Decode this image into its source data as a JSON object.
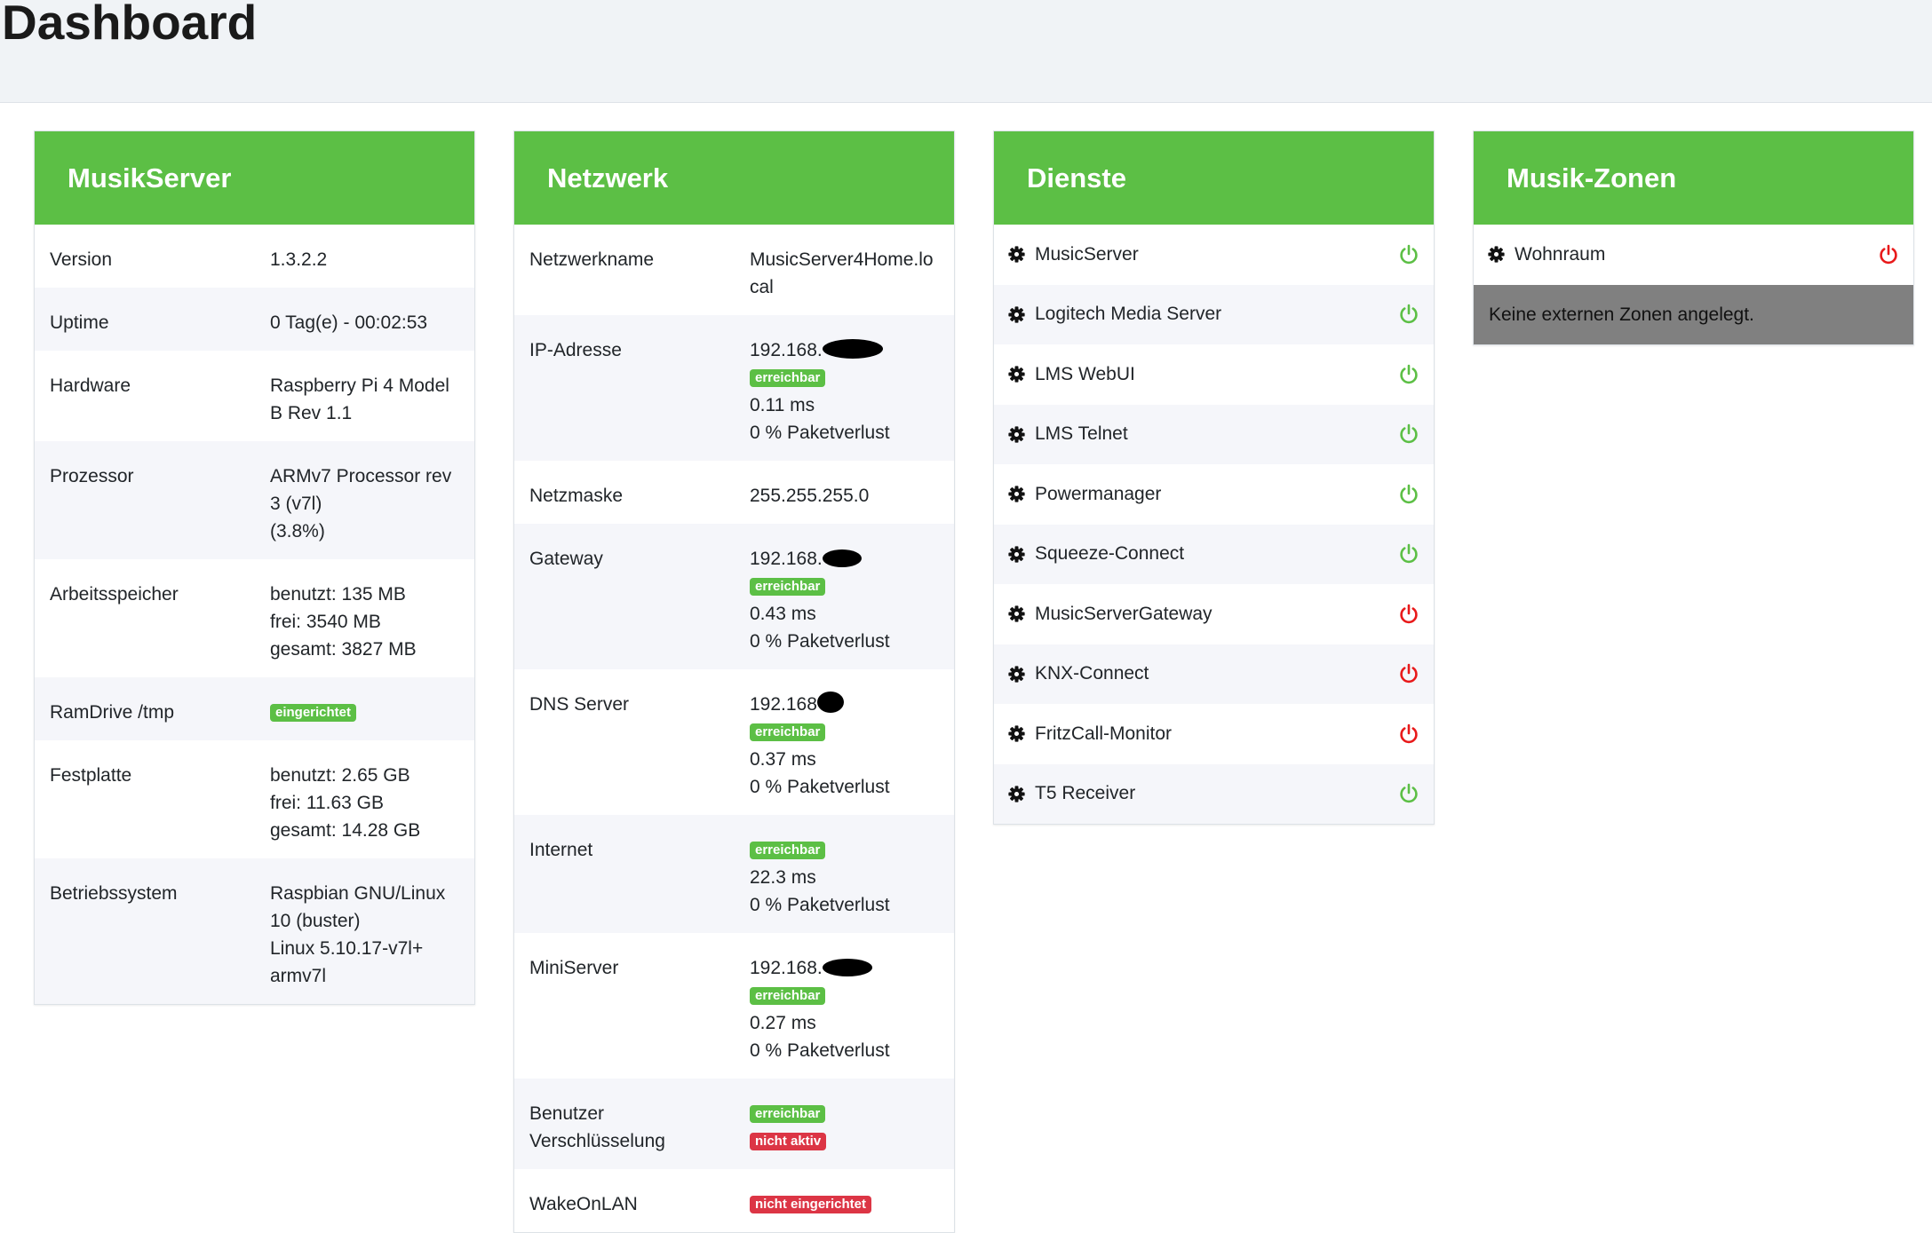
{
  "title": "Dashboard",
  "musikserver": {
    "title": "MusikServer",
    "rows": [
      {
        "label": "Version",
        "lines": [
          "1.3.2.2"
        ]
      },
      {
        "label": "Uptime",
        "lines": [
          "0 Tag(e) - 00:02:53"
        ]
      },
      {
        "label": "Hardware",
        "lines": [
          "Raspberry Pi 4 Model",
          "B Rev 1.1"
        ]
      },
      {
        "label": "Prozessor",
        "lines": [
          "ARMv7 Processor rev",
          "3 (v7l)",
          "(3.8%)"
        ]
      },
      {
        "label": "Arbeitsspeicher",
        "lines": [
          "benutzt: 135 MB",
          "frei: 3540 MB",
          "gesamt: 3827 MB"
        ]
      },
      {
        "label": "RamDrive /tmp",
        "badge": "eingerichtet"
      },
      {
        "label": "Festplatte",
        "lines": [
          "benutzt: 2.65 GB",
          "frei: 11.63 GB",
          "gesamt: 14.28 GB"
        ]
      },
      {
        "label": "Betriebssystem",
        "lines": [
          "Raspbian GNU/Linux",
          "10 (buster)",
          "Linux 5.10.17-v7l+",
          "armv7l"
        ]
      }
    ]
  },
  "netzwerk": {
    "title": "Netzwerk",
    "rows": [
      {
        "label": "Netzwerkname",
        "lines": [
          "MusicServer4Home.lo",
          "cal"
        ]
      },
      {
        "label": "IP-Adresse",
        "ip": "192.168.",
        "badge": "erreichbar",
        "ping": "0.11 ms",
        "loss": "0 % Paketverlust"
      },
      {
        "label": "Netzmaske",
        "lines": [
          "255.255.255.0"
        ]
      },
      {
        "label": "Gateway",
        "ip": "192.168.",
        "badge": "erreichbar",
        "ping": "0.43 ms",
        "loss": "0 % Paketverlust"
      },
      {
        "label": "DNS Server",
        "ip": "192.168",
        "badge": "erreichbar",
        "ping": "0.37 ms",
        "loss": "0 % Paketverlust"
      },
      {
        "label": "Internet",
        "badge": "erreichbar",
        "ping": "22.3 ms",
        "loss": "0 % Paketverlust"
      },
      {
        "label": "MiniServer",
        "ip": "192.168.",
        "badge": "erreichbar",
        "ping": "0.27 ms",
        "loss": "0 % Paketverlust"
      },
      {
        "label": "Benutzer",
        "label2": "Verschlüsselung",
        "badge": "erreichbar",
        "badge2": "nicht aktiv"
      },
      {
        "label": "WakeOnLAN",
        "badge_red": "nicht eingerichtet"
      }
    ]
  },
  "dienste": {
    "title": "Dienste",
    "items": [
      {
        "name": "MusicServer",
        "running": true
      },
      {
        "name": "Logitech Media Server",
        "running": true
      },
      {
        "name": "LMS WebUI",
        "running": true
      },
      {
        "name": "LMS Telnet",
        "running": true
      },
      {
        "name": "Powermanager",
        "running": true
      },
      {
        "name": "Squeeze-Connect",
        "running": true
      },
      {
        "name": "MusicServerGateway",
        "running": false
      },
      {
        "name": "KNX-Connect",
        "running": false
      },
      {
        "name": "FritzCall-Monitor",
        "running": false
      },
      {
        "name": "T5 Receiver",
        "running": true
      }
    ]
  },
  "zonen": {
    "title": "Musik-Zonen",
    "items": [
      {
        "name": "Wohnraum",
        "running": false
      }
    ],
    "note": "Keine externen Zonen angelegt."
  },
  "colors": {
    "header_green": "#5cbf45",
    "on_green": "#5cbf45",
    "off_red": "#e8191a",
    "badge_red": "#dc3545"
  },
  "icons": {
    "service": "gear-icon",
    "status": "power-icon"
  }
}
